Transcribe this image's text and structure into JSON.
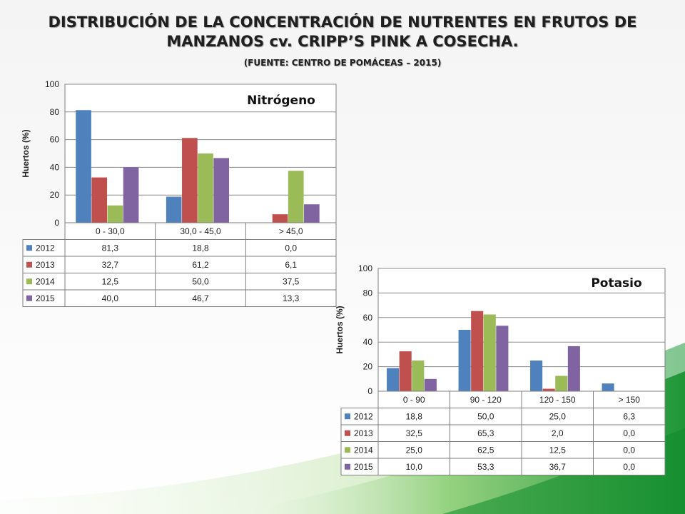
{
  "slide": {
    "title_line1": "DISTRIBUCIÓN DE LA CONCENTRACIÓN DE NUTRENTES EN FRUTOS DE",
    "title_line2": "MANZANOS cv. CRIPP’S PINK A COSECHA.",
    "source": "(FUENTE: CENTRO DE POMÁCEAS – 2015)"
  },
  "colors": {
    "2012": "#4f81bd",
    "2013": "#c0504d",
    "2014": "#9bbb59",
    "2015": "#8064a2",
    "background_accent": "#2e9b3c"
  },
  "chart_data": [
    {
      "type": "bar",
      "title": "Nitrógeno",
      "ylabel": "Huertos (%)",
      "xlabel": "",
      "ylim": [
        0,
        100
      ],
      "yticks": [
        0,
        20,
        40,
        60,
        80,
        100
      ],
      "grid": true,
      "legend": "data-table",
      "categories": [
        "0 - 30,0",
        "30,0 - 45,0",
        "> 45,0"
      ],
      "series": [
        {
          "name": "2012",
          "values": [
            81.3,
            18.8,
            0.0
          ],
          "labels": [
            "81,3",
            "18,8",
            "0,0"
          ]
        },
        {
          "name": "2013",
          "values": [
            32.7,
            61.2,
            6.1
          ],
          "labels": [
            "32,7",
            "61,2",
            "6,1"
          ]
        },
        {
          "name": "2014",
          "values": [
            12.5,
            50.0,
            37.5
          ],
          "labels": [
            "12,5",
            "50,0",
            "37,5"
          ]
        },
        {
          "name": "2015",
          "values": [
            40.0,
            46.7,
            13.3
          ],
          "labels": [
            "40,0",
            "46,7",
            "13,3"
          ]
        }
      ]
    },
    {
      "type": "bar",
      "title": "Potasio",
      "ylabel": "Huertos (%)",
      "xlabel": "",
      "ylim": [
        0,
        100
      ],
      "yticks": [
        0,
        20,
        40,
        60,
        80,
        100
      ],
      "grid": true,
      "legend": "data-table",
      "categories": [
        "0 - 90",
        "90 - 120",
        "120 - 150",
        "> 150"
      ],
      "series": [
        {
          "name": "2012",
          "values": [
            18.8,
            50.0,
            25.0,
            6.3
          ],
          "labels": [
            "18,8",
            "50,0",
            "25,0",
            "6,3"
          ]
        },
        {
          "name": "2013",
          "values": [
            32.5,
            65.3,
            2.0,
            0.0
          ],
          "labels": [
            "32,5",
            "65,3",
            "2,0",
            "0,0"
          ]
        },
        {
          "name": "2014",
          "values": [
            25.0,
            62.5,
            12.5,
            0.0
          ],
          "labels": [
            "25,0",
            "62,5",
            "12,5",
            "0,0"
          ]
        },
        {
          "name": "2015",
          "values": [
            10.0,
            53.3,
            36.7,
            0.0
          ],
          "labels": [
            "10,0",
            "53,3",
            "36,7",
            "0,0"
          ]
        }
      ]
    }
  ]
}
